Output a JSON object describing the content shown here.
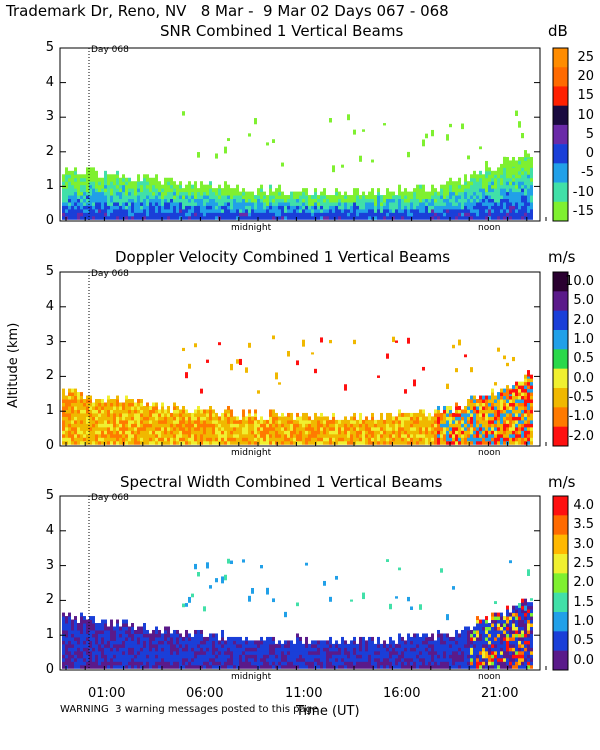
{
  "header": "Trademark Dr, Reno, NV   8 Mar -  9 Mar 02 Days 067 - 068",
  "chart_data": [
    {
      "type": "heatmap",
      "title": "SNR Combined 1 Vertical Beams",
      "unit": "dB",
      "colorbar": {
        "labels": [
          "25",
          "20",
          "15",
          "10",
          "5",
          "0",
          "-5",
          "-10",
          "-15"
        ],
        "colors": [
          "#ff8c00",
          "#ff6a00",
          "#ff2000",
          "#1a0a40",
          "#6a2aa8",
          "#1a3fd8",
          "#21a0e8",
          "#41e0a8",
          "#7ff030"
        ]
      },
      "ylim": [
        0,
        5
      ],
      "yticks": [
        "0",
        "1",
        "2",
        "3",
        "4",
        "5"
      ],
      "xmarkers": [
        "midnight",
        "noon"
      ],
      "day_marker": "Day 068"
    },
    {
      "type": "heatmap",
      "title": "Doppler Velocity Combined 1 Vertical Beams",
      "unit": "m/s",
      "colorbar": {
        "labels": [
          "10.0",
          "5.0",
          "2.0",
          "1.0",
          "0.5",
          "0.0",
          "-0.5",
          "-1.0",
          "-2.0"
        ],
        "colors": [
          "#2a0030",
          "#5a1a8a",
          "#1a3fd8",
          "#21a0e8",
          "#2ad84a",
          "#f0f030",
          "#f0b800",
          "#ff7a00",
          "#ff1010"
        ]
      },
      "ylim": [
        0,
        5
      ],
      "yticks": [
        "0",
        "1",
        "2",
        "3",
        "4",
        "5"
      ],
      "ylabel": "Altitude (km)",
      "xmarkers": [
        "midnight",
        "noon"
      ],
      "day_marker": "Day 068"
    },
    {
      "type": "heatmap",
      "title": "Spectral Width Combined 1 Vertical Beams",
      "unit": "m/s",
      "colorbar": {
        "labels": [
          "4.0",
          "3.5",
          "3.0",
          "2.5",
          "2.0",
          "1.5",
          "1.0",
          "0.5",
          "0.0"
        ],
        "colors": [
          "#ff1010",
          "#ff6a00",
          "#ffb800",
          "#f0f030",
          "#7ff030",
          "#41e0a8",
          "#21a0e8",
          "#1a3fd8",
          "#5a1a8a"
        ]
      },
      "ylim": [
        0,
        5
      ],
      "yticks": [
        "0",
        "1",
        "2",
        "3",
        "4",
        "5"
      ],
      "xticks": [
        "01:00",
        "06:00",
        "11:00",
        "16:00",
        "21:00"
      ],
      "xmarkers": [
        "midnight",
        "noon"
      ],
      "day_marker": "Day 068",
      "xlabel": "Time (UT)"
    }
  ],
  "warning": "WARNING  3 warning messages posted to this page"
}
